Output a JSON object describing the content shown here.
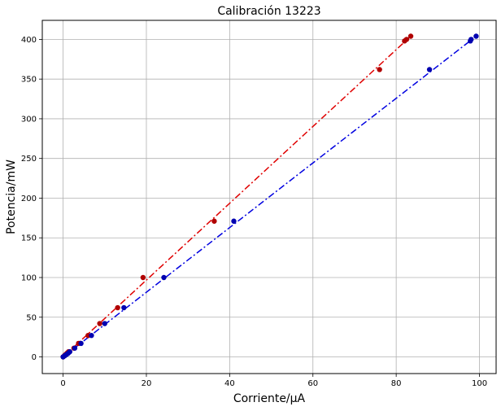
{
  "chart_data": {
    "type": "scatter",
    "title": "Calibración 13223",
    "xlabel": "Corriente/μA",
    "ylabel": "Potencia/mW",
    "xlim": [
      -5,
      104
    ],
    "ylim": [
      -21,
      424
    ],
    "xticks": [
      0,
      20,
      40,
      60,
      80,
      100
    ],
    "yticks": [
      0,
      50,
      100,
      150,
      200,
      250,
      300,
      350,
      400
    ],
    "grid": true,
    "series": [
      {
        "color": "#b00000",
        "marker": "circle",
        "points": [
          {
            "x": 0.0,
            "y": 0.0
          },
          {
            "x": 0.3,
            "y": 1.5
          },
          {
            "x": 0.6,
            "y": 3.0
          },
          {
            "x": 0.9,
            "y": 4.5
          },
          {
            "x": 1.3,
            "y": 6.5
          },
          {
            "x": 2.6,
            "y": 11.0
          },
          {
            "x": 3.7,
            "y": 17.0
          },
          {
            "x": 6.0,
            "y": 27.0
          },
          {
            "x": 8.8,
            "y": 42.0
          },
          {
            "x": 13.1,
            "y": 62.0
          },
          {
            "x": 19.2,
            "y": 100.0
          },
          {
            "x": 36.3,
            "y": 171.0
          },
          {
            "x": 76.0,
            "y": 362.0
          },
          {
            "x": 82.0,
            "y": 398.0
          },
          {
            "x": 82.5,
            "y": 400.0
          },
          {
            "x": 83.5,
            "y": 404.0
          }
        ]
      },
      {
        "color": "#0000b0",
        "marker": "circle",
        "points": [
          {
            "x": 0.0,
            "y": 0.0
          },
          {
            "x": 0.4,
            "y": 1.5
          },
          {
            "x": 0.8,
            "y": 3.0
          },
          {
            "x": 1.2,
            "y": 4.5
          },
          {
            "x": 1.6,
            "y": 6.5
          },
          {
            "x": 2.8,
            "y": 11.0
          },
          {
            "x": 4.3,
            "y": 17.0
          },
          {
            "x": 6.8,
            "y": 27.0
          },
          {
            "x": 10.0,
            "y": 42.0
          },
          {
            "x": 14.6,
            "y": 62.0
          },
          {
            "x": 24.2,
            "y": 100.0
          },
          {
            "x": 41.0,
            "y": 171.0
          },
          {
            "x": 88.0,
            "y": 362.0
          },
          {
            "x": 97.8,
            "y": 398.0
          },
          {
            "x": 98.0,
            "y": 400.0
          },
          {
            "x": 99.2,
            "y": 404.0
          }
        ]
      }
    ],
    "fits": [
      {
        "color": "#e00000",
        "style": "dash-dot",
        "x": [
          0,
          83.5
        ],
        "y": [
          0,
          404
        ]
      },
      {
        "color": "#0000e0",
        "style": "dash-dot",
        "x": [
          0,
          99.2
        ],
        "y": [
          0,
          404
        ]
      }
    ]
  }
}
